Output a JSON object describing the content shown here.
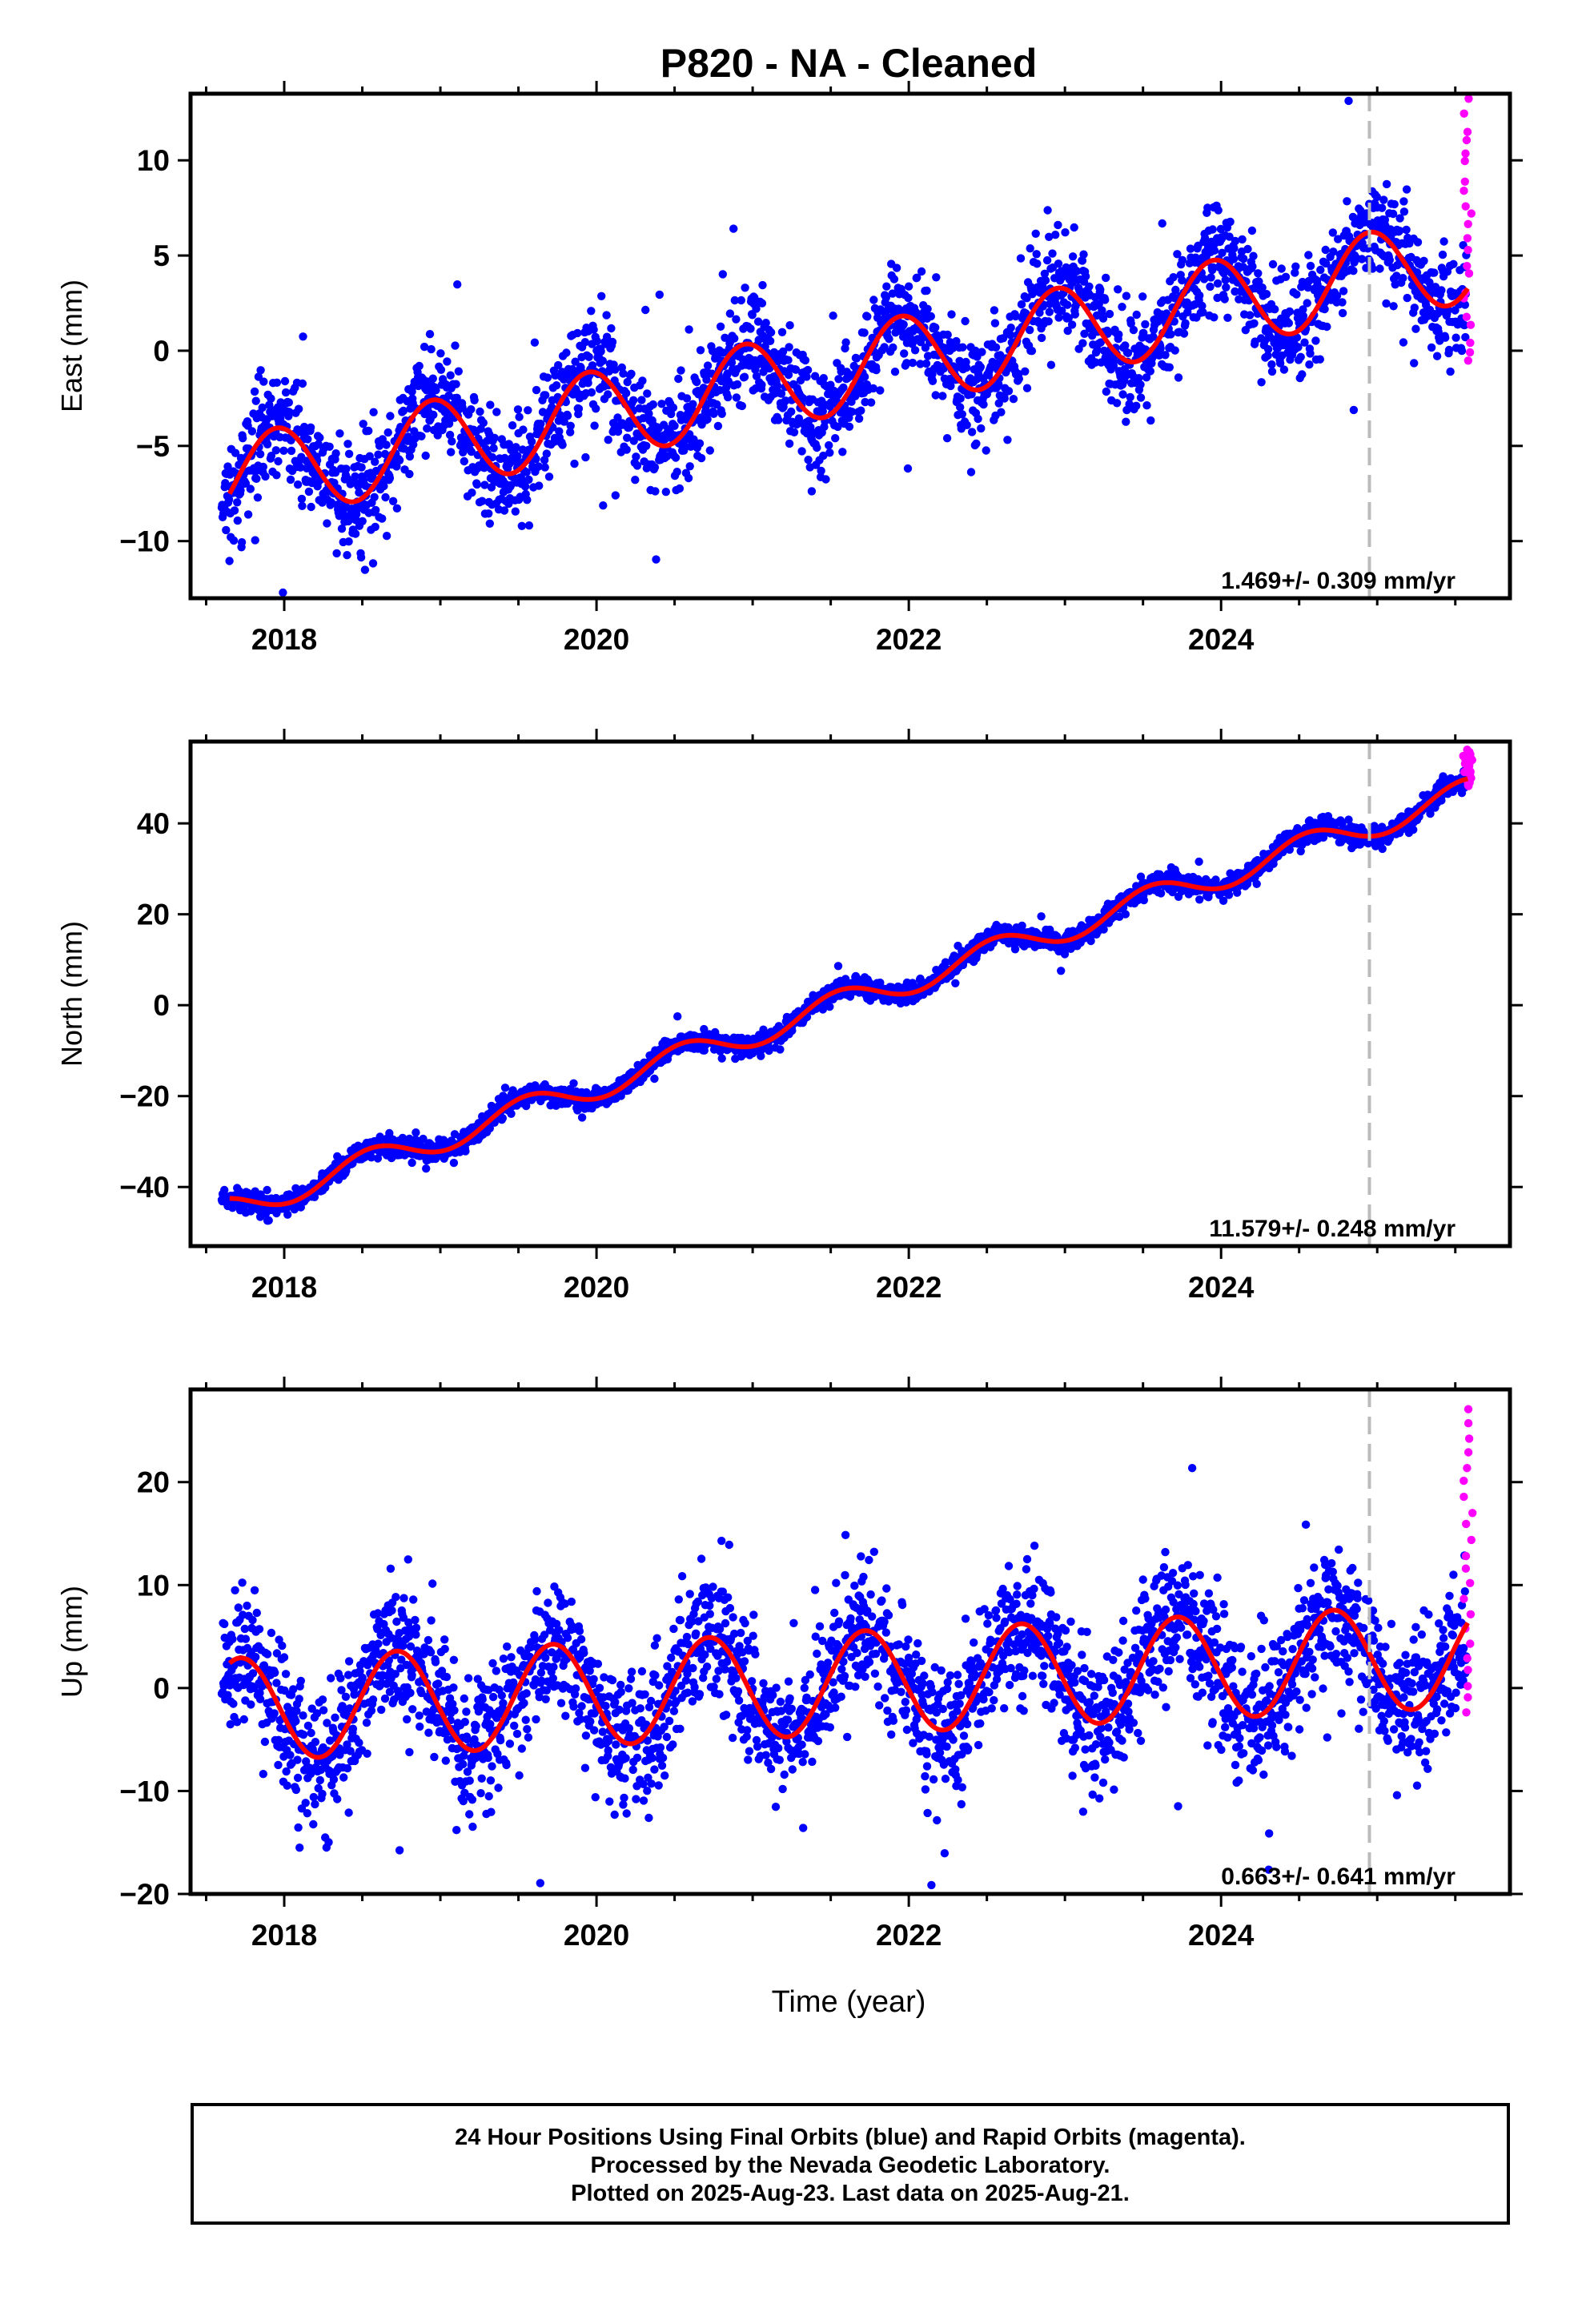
{
  "figure": {
    "title": "P820  - NA - Cleaned",
    "xlabel": "Time (year)"
  },
  "colors": {
    "final_orbit_points": "#0000ff",
    "rapid_orbit_points": "#ff00ff",
    "model_fit": "#ff0000",
    "data_end_marker": "#bbbbbb"
  },
  "footer": {
    "line1": "24 Hour Positions Using Final Orbits (blue) and Rapid Orbits (magenta).",
    "line2": "Processed by the Nevada Geodetic Laboratory.",
    "line3": "Plotted on 2025-Aug-23. Last data on 2025-Aug-21."
  },
  "chart_data": [
    {
      "type": "scatter",
      "ylabel": "East (mm)",
      "rate_label": "1.469+/- 0.309 mm/yr",
      "xlim": [
        2017.4,
        2025.85
      ],
      "ylim": [
        -13,
        13.5
      ],
      "xticks": [
        2018,
        2020,
        2022,
        2024
      ],
      "yticks": [
        -10,
        -5,
        0,
        5,
        10
      ],
      "data_end_marker_x": 2024.95,
      "fit": {
        "intercept": -1.0,
        "t0": 2021.6,
        "rate": 1.469,
        "amplitude": 2.3,
        "phase_peak": 0.95
      },
      "noise_sd": 1.4,
      "rapid_orbit_range": [
        -0.7,
        13
      ]
    },
    {
      "type": "scatter",
      "ylabel": "North (mm)",
      "rate_label": "11.579+/- 0.248 mm/yr",
      "xlim": [
        2017.4,
        2025.85
      ],
      "ylim": [
        -53,
        58
      ],
      "xticks": [
        2018,
        2020,
        2022,
        2024
      ],
      "yticks": [
        -40,
        -20,
        0,
        20,
        40
      ],
      "data_end_marker_x": 2024.95,
      "fit": {
        "intercept": 0.8,
        "t0": 2021.6,
        "rate": 11.579,
        "amplitude": 3.0,
        "phase_peak": 0.55
      },
      "noise_sd": 1.1,
      "rapid_orbit_range": [
        48,
        56
      ]
    },
    {
      "type": "scatter",
      "ylabel": "Up (mm)",
      "rate_label": "0.663+/- 0.641 mm/yr",
      "xlim": [
        2017.4,
        2025.85
      ],
      "ylim": [
        -20,
        29
      ],
      "xticks": [
        2018,
        2020,
        2022,
        2024
      ],
      "yticks": [
        -20,
        -10,
        0,
        10,
        20
      ],
      "data_end_marker_x": 2024.95,
      "fit": {
        "intercept": 0.5,
        "t0": 2021.6,
        "rate": 0.663,
        "amplitude": 5.0,
        "phase_peak": 0.72
      },
      "noise_sd": 3.3,
      "rapid_orbit_range": [
        -2.5,
        27
      ]
    }
  ]
}
